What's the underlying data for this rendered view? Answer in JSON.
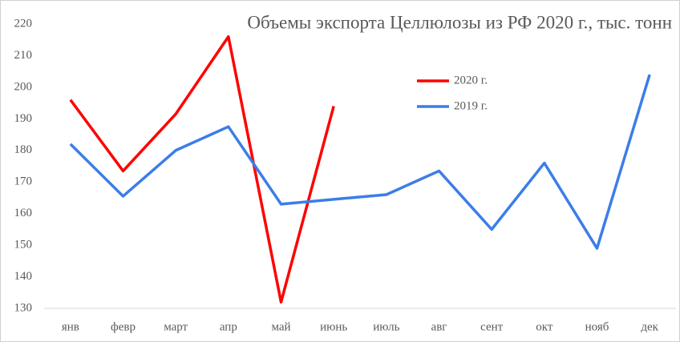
{
  "chart_data": {
    "type": "line",
    "title": "Объемы экспорта Целлюлозы из РФ 2020 г., тыс. тонн",
    "categories": [
      "янв",
      "февр",
      "март",
      "апр",
      "май",
      "июнь",
      "июль",
      "авг",
      "сент",
      "окт",
      "нояб",
      "дек"
    ],
    "series": [
      {
        "name": "2020 г.",
        "color": "#ff0000",
        "values": [
          196,
          173.5,
          191.5,
          216,
          132,
          194,
          null,
          null,
          null,
          null,
          null,
          null
        ]
      },
      {
        "name": "2019 г.",
        "color": "#3c7de8",
        "values": [
          182,
          165.5,
          180,
          187.5,
          163,
          164.5,
          166,
          173.5,
          155,
          176,
          149,
          204
        ]
      }
    ],
    "ylim": [
      130,
      220
    ],
    "yticks": [
      130,
      140,
      150,
      160,
      170,
      180,
      190,
      200,
      210,
      220
    ],
    "grid": false
  }
}
